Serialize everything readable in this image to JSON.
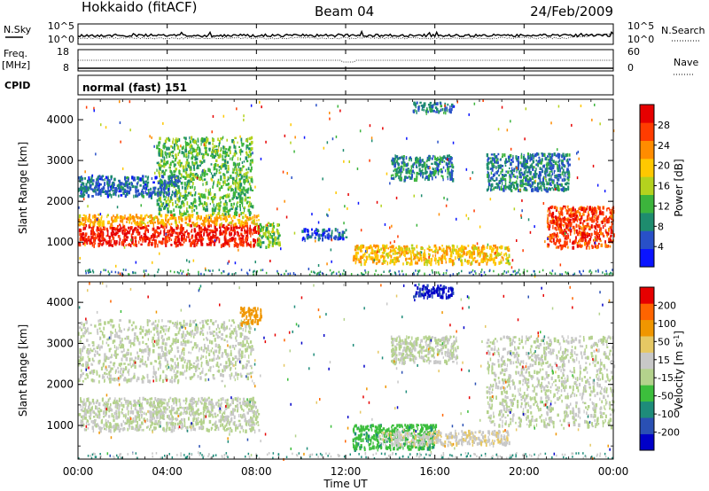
{
  "header": {
    "radar": "Hokkaido (fitACF)",
    "beam": "Beam 04",
    "date": "24/Feb/2009"
  },
  "noise_panel": {
    "left_label": "N.Sky",
    "left_ticks": [
      "10^5",
      "10^0"
    ],
    "right_label": "N.Search",
    "right_ticks": [
      "10^5",
      "10^0"
    ]
  },
  "freq_panel": {
    "left_label_1": "Freq.",
    "left_label_2": "[MHz]",
    "left_ticks": [
      "18",
      "8"
    ],
    "right_label": "Nave",
    "right_ticks": [
      "60",
      "0"
    ]
  },
  "cpid": {
    "label": "CPID",
    "value": "normal (fast) 151"
  },
  "colors": {
    "power": [
      "#0a14ff",
      "#2850c8",
      "#1e8c6e",
      "#3cb43c",
      "#b4d21e",
      "#ffc800",
      "#ff8c00",
      "#ff3c00",
      "#e60000"
    ],
    "velocity": [
      "#0000c8",
      "#2a50b4",
      "#1e8c7a",
      "#3cbe3c",
      "#b4d28c",
      "#c8c8c8",
      "#e6c864",
      "#f09600",
      "#ff6400",
      "#e60000"
    ]
  },
  "chart_data": [
    {
      "type": "heatmap",
      "name": "power",
      "xlabel": "",
      "ylabel": "Slant Range [km]",
      "xlim": [
        "00:00",
        "24:00"
      ],
      "ylim": [
        180,
        4500
      ],
      "yticks": [
        "4000",
        "3000",
        "2000",
        "1000"
      ],
      "colorbar": {
        "label": "Power [dB]",
        "ticks": [
          "28",
          "24",
          "20",
          "16",
          "12",
          "8",
          "4"
        ],
        "range": [
          0,
          32
        ]
      },
      "regions": [
        {
          "t0": 0.0,
          "t1": 8.1,
          "r0": 950,
          "r1": 1450,
          "level": 29
        },
        {
          "t0": 0.0,
          "t1": 8.1,
          "r0": 1450,
          "r1": 1700,
          "level": 21
        },
        {
          "t0": 3.5,
          "t1": 7.8,
          "r0": 1700,
          "r1": 3600,
          "level": 13
        },
        {
          "t0": 0.0,
          "t1": 4.5,
          "r0": 2150,
          "r1": 2650,
          "level": 7
        },
        {
          "t0": 8.0,
          "t1": 9.0,
          "r0": 900,
          "r1": 1500,
          "level": 14
        },
        {
          "t0": 10.0,
          "t1": 12.0,
          "r0": 1100,
          "r1": 1350,
          "level": 5
        },
        {
          "t0": 12.3,
          "t1": 19.3,
          "r0": 500,
          "r1": 950,
          "level": 20
        },
        {
          "t0": 14.0,
          "t1": 16.8,
          "r0": 2550,
          "r1": 3150,
          "level": 9
        },
        {
          "t0": 15.0,
          "t1": 16.8,
          "r0": 4200,
          "r1": 4450,
          "level": 8
        },
        {
          "t0": 18.3,
          "t1": 22.0,
          "r0": 2300,
          "r1": 3200,
          "level": 8
        },
        {
          "t0": 21.0,
          "t1": 24.0,
          "r0": 900,
          "r1": 1900,
          "level": 27
        }
      ]
    },
    {
      "type": "heatmap",
      "name": "velocity",
      "xlabel": "Time UT",
      "ylabel": "Slant Range [km]",
      "xlim": [
        "00:00",
        "24:00"
      ],
      "ylim": [
        180,
        4500
      ],
      "xticks": [
        "00:00",
        "04:00",
        "08:00",
        "12:00",
        "16:00",
        "20:00",
        "00:00"
      ],
      "yticks": [
        "4000",
        "3000",
        "2000",
        "1000"
      ],
      "colorbar": {
        "label": "Velocity [m s^-1]",
        "ticks": [
          "200",
          "100",
          "50",
          "15",
          "-15",
          "-50",
          "-100",
          "-200"
        ],
        "range": [
          -250,
          250
        ]
      },
      "regions": [
        {
          "t0": 0.0,
          "t1": 8.1,
          "r0": 900,
          "r1": 1700,
          "level": 0
        },
        {
          "t0": 0.0,
          "t1": 7.8,
          "r0": 2100,
          "r1": 3600,
          "level": 0
        },
        {
          "t0": 7.2,
          "t1": 8.2,
          "r0": 3500,
          "r1": 3900,
          "level": 120
        },
        {
          "t0": 12.3,
          "t1": 16.0,
          "r0": 450,
          "r1": 1050,
          "level": -80
        },
        {
          "t0": 13.5,
          "t1": 19.3,
          "r0": 550,
          "r1": 900,
          "level": 40
        },
        {
          "t0": 14.0,
          "t1": 17.0,
          "r0": 2550,
          "r1": 3200,
          "level": 0
        },
        {
          "t0": 15.0,
          "t1": 16.8,
          "r0": 4150,
          "r1": 4450,
          "level": -210
        },
        {
          "t0": 18.3,
          "t1": 24.0,
          "r0": 1000,
          "r1": 3200,
          "level": 0
        }
      ]
    }
  ]
}
